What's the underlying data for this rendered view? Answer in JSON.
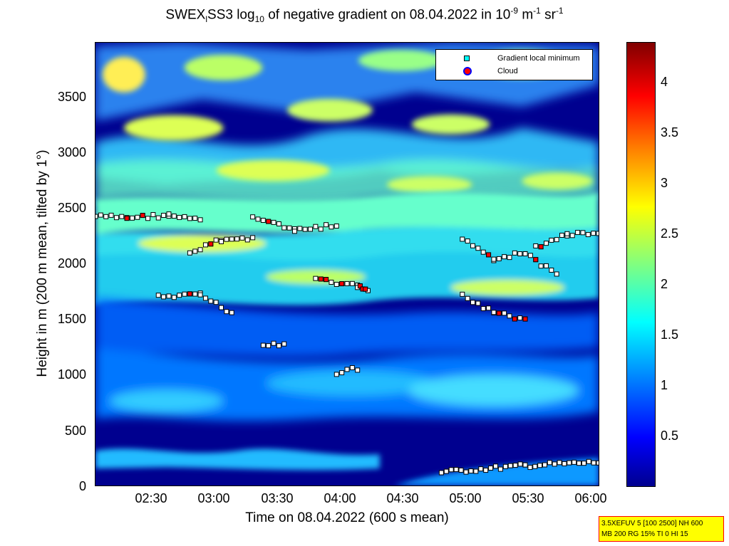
{
  "title": {
    "part1": "SWEX",
    "sub1": "l",
    "part2": "SS3 log",
    "sub2": "10",
    "part3": " of negative gradient on 08.04.2022 in 10",
    "sup1": "-9",
    "part4": " m",
    "sup2": "-1",
    "part5": " sr",
    "sup3": "-1"
  },
  "legend": {
    "entry1": "Gradient local minimum",
    "entry2": "Cloud"
  },
  "info_box": {
    "line1": "3.5XEFUV 5 [100 2500] NH 600",
    "line2": "MB 200 RG 15% TI 0 HI 15"
  },
  "colors": {
    "low": "#00008f",
    "high": "#800000",
    "marker_face": "#ffffff",
    "marker_edge": "#000000",
    "cloud": "#ff0000"
  },
  "chart_data": {
    "type": "heatmap",
    "title": "SWEX_l SS3 log10 of negative gradient on 08.04.2022 in 10^-9 m^-1 sr^-1",
    "xlabel": "Time on 08.04.2022 (600 s mean)",
    "ylabel": "Height in m (200 m mean, tilted by 1°)",
    "xlim": [
      "02:05",
      "06:05"
    ],
    "ylim": [
      0,
      4000
    ],
    "xticks": [
      "02:30",
      "03:00",
      "03:30",
      "04:00",
      "04:30",
      "05:00",
      "05:30",
      "06:00"
    ],
    "yticks": [
      "0",
      "500",
      "1000",
      "1500",
      "2000",
      "2500",
      "3000",
      "3500"
    ],
    "colorbar": {
      "ticks": [
        "0.5",
        "1",
        "1.5",
        "2",
        "2.5",
        "3",
        "3.5",
        "4"
      ],
      "range": [
        0,
        4.4
      ]
    },
    "legend_position": "top-right",
    "layers": [
      {
        "name": "Gradient local minimum",
        "description": "scattered square markers tracking layer edges"
      },
      {
        "name": "Cloud",
        "description": "red filled markers"
      }
    ],
    "gradient_minimum_tracks": [
      {
        "x": [
          "02:05",
          "02:20",
          "02:40",
          "02:55"
        ],
        "y": [
          2430,
          2420,
          2440,
          2390
        ]
      },
      {
        "x": [
          "02:50",
          "03:05",
          "03:20"
        ],
        "y": [
          2100,
          2220,
          2230
        ]
      },
      {
        "x": [
          "03:20",
          "03:40",
          "04:00"
        ],
        "y": [
          2440,
          2300,
          2350
        ]
      },
      {
        "x": [
          "03:50",
          "04:10",
          "04:15"
        ],
        "y": [
          1860,
          1800,
          1760
        ]
      },
      {
        "x": [
          "02:35",
          "02:55",
          "03:10"
        ],
        "y": [
          1700,
          1720,
          1560
        ]
      },
      {
        "x": [
          "05:00",
          "05:15",
          "05:30",
          "05:45"
        ],
        "y": [
          2240,
          2050,
          2100,
          1900
        ]
      },
      {
        "x": [
          "05:00",
          "05:15",
          "05:30"
        ],
        "y": [
          1720,
          1560,
          1500
        ]
      },
      {
        "x": [
          "05:35",
          "05:50",
          "06:05"
        ],
        "y": [
          2150,
          2270,
          2270
        ]
      },
      {
        "x": [
          "04:00",
          "04:10"
        ],
        "y": [
          1020,
          1060
        ]
      },
      {
        "x": [
          "03:25",
          "03:35"
        ],
        "y": [
          1260,
          1280
        ]
      },
      {
        "x": [
          "04:50",
          "05:30",
          "06:05"
        ],
        "y": [
          120,
          180,
          210
        ]
      }
    ]
  }
}
